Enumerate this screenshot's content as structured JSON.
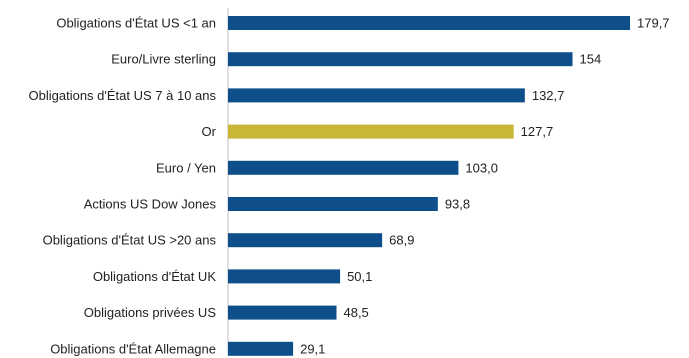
{
  "chart_data": {
    "type": "bar",
    "orientation": "horizontal",
    "categories": [
      "Obligations d'État US <1 an",
      "Euro/Livre sterling",
      "Obligations d'État US 7 à 10 ans",
      "Or",
      "Euro / Yen",
      "Actions US Dow Jones",
      "Obligations d'État US >20 ans",
      "Obligations d'État UK",
      "Obligations privées US",
      "Obligations d'État Allemagne"
    ],
    "values": [
      179.7,
      154,
      132.7,
      127.7,
      103.0,
      93.8,
      68.9,
      50.1,
      48.5,
      29.1
    ],
    "value_labels": [
      "179,7",
      "154",
      "132,7",
      "127,7",
      "103,0",
      "93,8",
      "68,9",
      "50,1",
      "48,5",
      "29,1"
    ],
    "xlim": [
      0,
      200
    ],
    "grid": false,
    "colors": {
      "default": "#0e4f8b",
      "highlight": "#c9b637",
      "axis": "#bfbfbf"
    },
    "highlight_category": "Or"
  }
}
